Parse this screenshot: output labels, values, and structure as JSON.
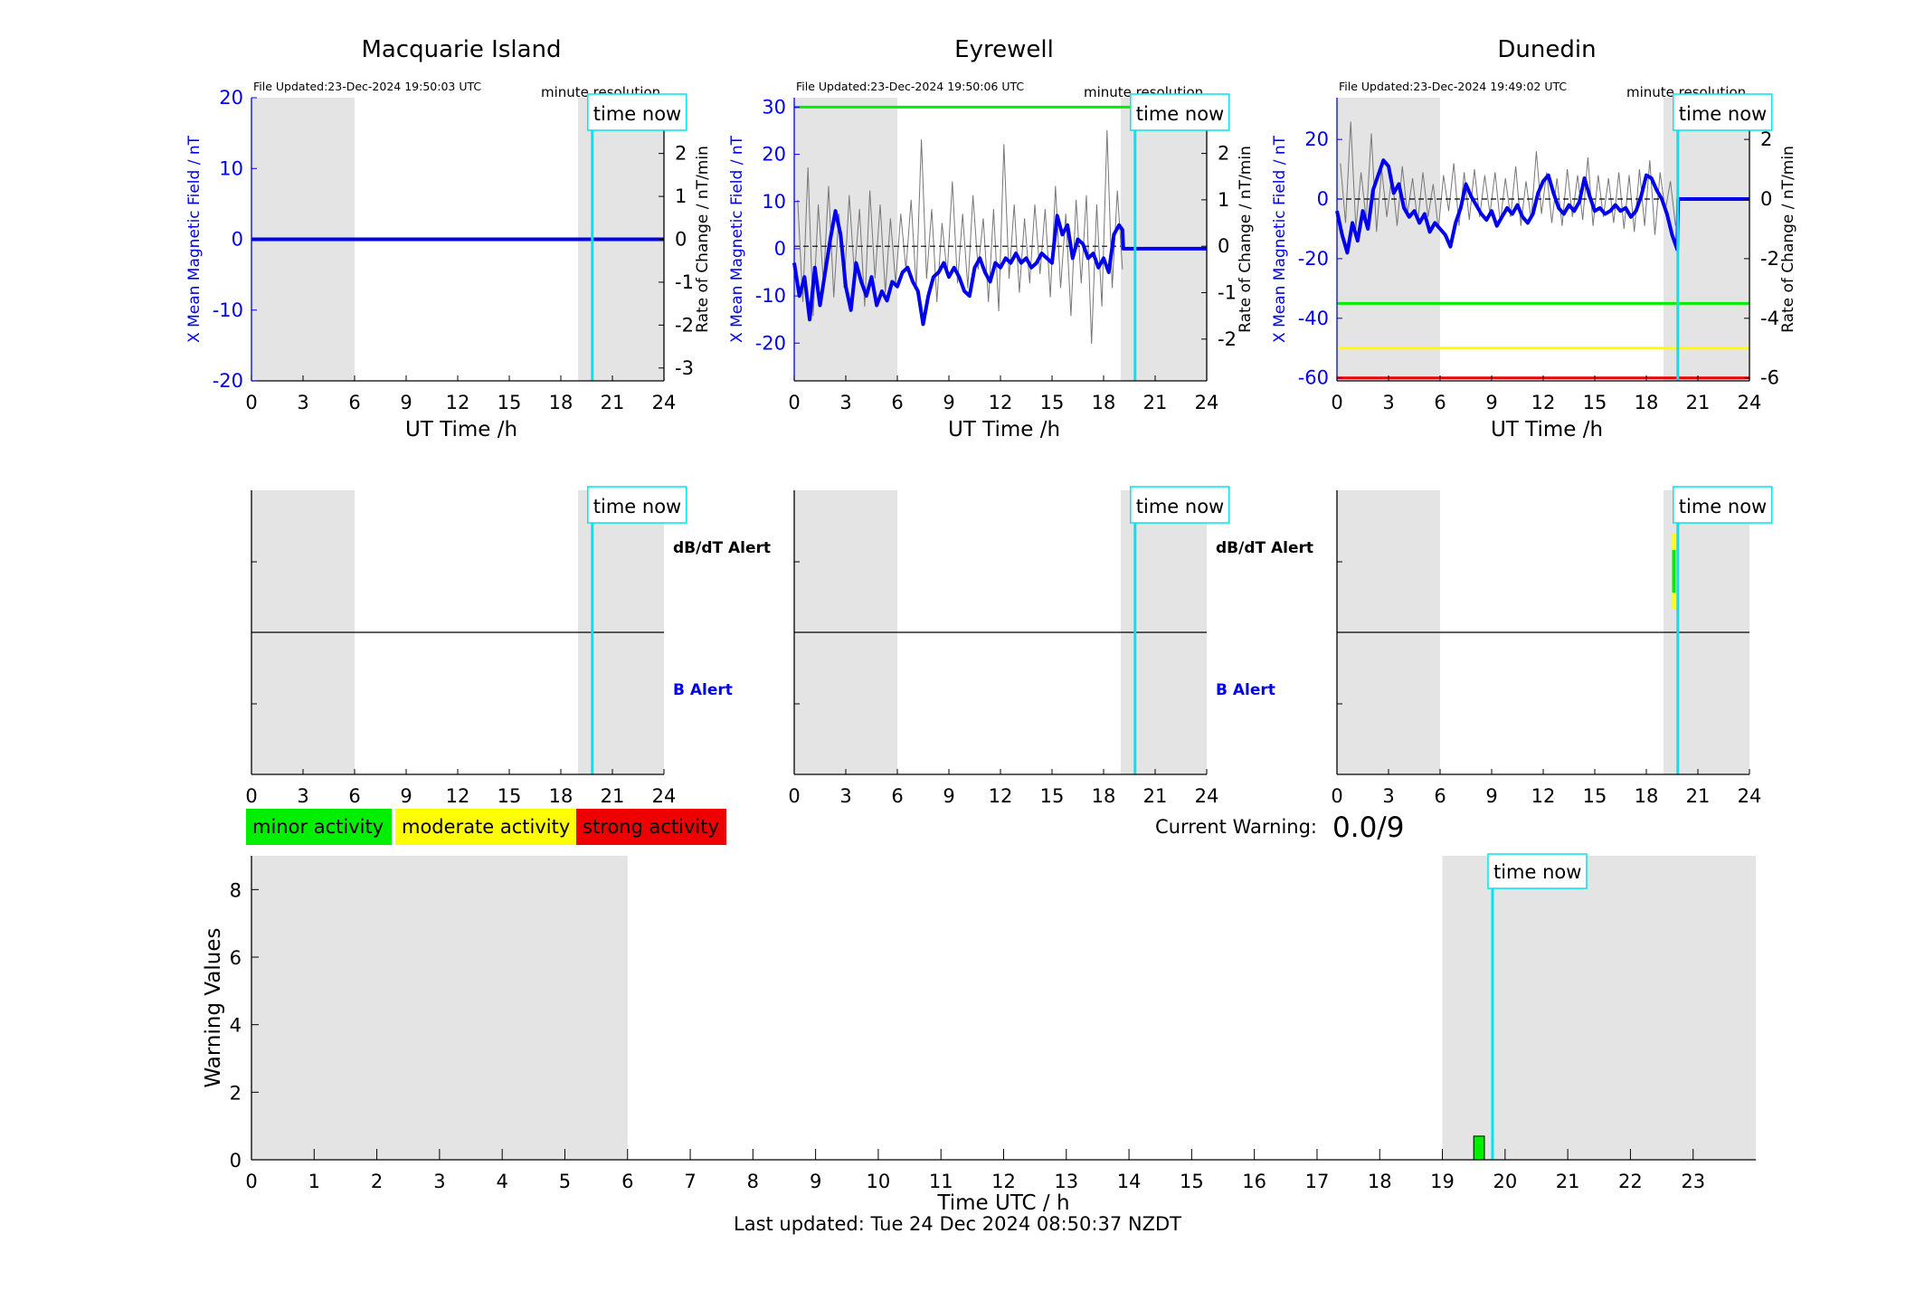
{
  "colors": {
    "shade": "#e4e4e4",
    "mean_line": "#0000ee",
    "axis_blue": "#0000ee",
    "time_now": "#00e5ee",
    "minor": "#00ee00",
    "moderate": "#ffff00",
    "strong": "#ee0000"
  },
  "chart_data": [
    {
      "type": "line",
      "title": "Macquarie Island",
      "file_updated": "File Updated:23-Dec-2024 19:50:03 UTC",
      "resolution_label": "minute resolution",
      "time_now_label": "time now",
      "time_now_h": 19.83,
      "shade_bands_h": [
        [
          0,
          6
        ],
        [
          19.0,
          24
        ]
      ],
      "xlabel": "UT Time /h",
      "xticks": [
        0,
        3,
        6,
        9,
        12,
        15,
        18,
        21,
        24
      ],
      "xlim": [
        0,
        24
      ],
      "ylabel_left": "X Mean Magnetic Field / nT",
      "ylim_left": [
        -20,
        20
      ],
      "yticks_left": [
        -20,
        -10,
        0,
        10,
        20
      ],
      "ylabel_right": "Rate of Change / nT/min",
      "ylim_right": [
        -3.3,
        3.3
      ],
      "yticks_right": [
        -3,
        -2,
        -1,
        0,
        1,
        2,
        3
      ],
      "threshold_lines": [],
      "mean_field": {
        "x": [
          0,
          24
        ],
        "y": [
          0,
          0
        ]
      },
      "rate_series": {
        "x": [],
        "y": []
      }
    },
    {
      "type": "line",
      "title": "Eyrewell",
      "file_updated": "File Updated:23-Dec-2024 19:50:06 UTC",
      "resolution_label": "minute resolution",
      "time_now_label": "time now",
      "time_now_h": 19.83,
      "shade_bands_h": [
        [
          0,
          6
        ],
        [
          19.0,
          24
        ]
      ],
      "xlabel": "UT Time /h",
      "xticks": [
        0,
        3,
        6,
        9,
        12,
        15,
        18,
        21,
        24
      ],
      "xlim": [
        0,
        24
      ],
      "ylabel_left": "X Mean Magnetic Field / nT",
      "ylim_left": [
        -28,
        32
      ],
      "yticks_left": [
        -20,
        -10,
        0,
        10,
        20,
        30
      ],
      "ylabel_right": "Rate of Change / nT/min",
      "ylim_right": [
        -2.9,
        3.2
      ],
      "yticks_right": [
        -2,
        -1,
        0,
        1,
        2,
        3
      ],
      "threshold_lines": [
        {
          "value": 30,
          "color": "#00ee00"
        }
      ],
      "mean_field": {
        "x": [
          0,
          0.3,
          0.6,
          0.9,
          1.2,
          1.5,
          1.8,
          2.1,
          2.4,
          2.7,
          3.0,
          3.3,
          3.6,
          3.9,
          4.2,
          4.5,
          4.8,
          5.1,
          5.4,
          5.7,
          6.0,
          6.3,
          6.6,
          6.9,
          7.2,
          7.5,
          7.8,
          8.1,
          8.4,
          8.7,
          9.0,
          9.3,
          9.6,
          9.9,
          10.2,
          10.5,
          10.8,
          11.1,
          11.4,
          11.7,
          12.0,
          12.3,
          12.6,
          12.9,
          13.2,
          13.5,
          13.8,
          14.1,
          14.4,
          14.7,
          15.0,
          15.3,
          15.6,
          15.9,
          16.2,
          16.5,
          16.8,
          17.1,
          17.4,
          17.7,
          18.0,
          18.3,
          18.6,
          18.9,
          19.1,
          19.15,
          24
        ],
        "y": [
          -3,
          -10,
          -6,
          -15,
          -4,
          -12,
          -5,
          2,
          8,
          3,
          -8,
          -13,
          -3,
          -7,
          -10,
          -6,
          -12,
          -9,
          -11,
          -7,
          -8,
          -5,
          -4,
          -7,
          -9,
          -16,
          -10,
          -6,
          -5,
          -3,
          -6,
          -4,
          -6,
          -9,
          -10,
          -4,
          -2,
          -5,
          -7,
          -3,
          -4,
          -2,
          -3,
          -1,
          -3,
          -2,
          -4,
          -3,
          -1,
          -2,
          -3,
          7,
          3,
          5,
          -2,
          2,
          1,
          -2,
          -1,
          -4,
          -2,
          -5,
          3,
          5,
          4,
          0,
          0
        ]
      },
      "rate_series": {
        "x": [
          0.2,
          0.5,
          0.8,
          1.1,
          1.4,
          1.7,
          2.0,
          2.3,
          2.6,
          2.9,
          3.2,
          3.5,
          3.8,
          4.1,
          4.4,
          4.7,
          5.0,
          5.3,
          5.6,
          5.9,
          6.2,
          6.5,
          6.8,
          7.1,
          7.4,
          7.7,
          8.0,
          8.3,
          8.6,
          8.9,
          9.2,
          9.5,
          9.8,
          10.1,
          10.4,
          10.7,
          11.0,
          11.3,
          11.6,
          11.9,
          12.2,
          12.5,
          12.8,
          13.1,
          13.4,
          13.7,
          14.0,
          14.3,
          14.6,
          14.9,
          15.2,
          15.5,
          15.8,
          16.1,
          16.4,
          16.7,
          17.0,
          17.3,
          17.6,
          17.9,
          18.2,
          18.5,
          18.8,
          19.1
        ],
        "y": [
          1.0,
          -1.2,
          1.7,
          -1.5,
          0.9,
          -0.8,
          1.3,
          -1.1,
          0.7,
          -0.9,
          1.1,
          -0.6,
          0.8,
          -1.3,
          1.2,
          -0.7,
          0.9,
          -1.0,
          0.6,
          -0.8,
          0.7,
          -0.5,
          1.0,
          -0.9,
          2.3,
          -0.7,
          0.8,
          -1.2,
          0.5,
          -0.6,
          1.4,
          -0.8,
          0.7,
          -0.9,
          1.1,
          -0.5,
          0.6,
          -1.2,
          0.8,
          -1.4,
          2.2,
          -0.7,
          0.9,
          -1.0,
          0.6,
          -0.8,
          0.9,
          -0.6,
          0.8,
          -1.1,
          1.3,
          -0.9,
          0.7,
          -1.5,
          1.0,
          -0.8,
          1.1,
          -2.1,
          0.9,
          -1.3,
          2.5,
          -0.9,
          1.2,
          -0.5
        ]
      }
    },
    {
      "type": "line",
      "title": "Dunedin",
      "file_updated": "File Updated:23-Dec-2024 19:49:02 UTC",
      "resolution_label": "minute resolution",
      "time_now_label": "time now",
      "time_now_h": 19.83,
      "shade_bands_h": [
        [
          0,
          6
        ],
        [
          19.0,
          24
        ]
      ],
      "xlabel": "UT Time /h",
      "xticks": [
        0,
        3,
        6,
        9,
        12,
        15,
        18,
        21,
        24
      ],
      "xlim": [
        0,
        24
      ],
      "ylabel_left": "X Mean Magnetic Field / nT",
      "ylim_left": [
        -61,
        34
      ],
      "yticks_left": [
        -60,
        -40,
        -20,
        0,
        20
      ],
      "ylabel_right": "Rate of Change / nT/min",
      "ylim_right": [
        -6.1,
        3.4
      ],
      "yticks_right": [
        -6,
        -4,
        -2,
        0,
        2
      ],
      "threshold_lines": [
        {
          "value": -35,
          "color": "#00ee00"
        },
        {
          "value": -50,
          "color": "#ffff00"
        },
        {
          "value": -60,
          "color": "#ee0000"
        }
      ],
      "mean_field": {
        "x": [
          0,
          0.3,
          0.6,
          0.9,
          1.2,
          1.5,
          1.8,
          2.1,
          2.4,
          2.7,
          3.0,
          3.3,
          3.6,
          3.9,
          4.2,
          4.5,
          4.8,
          5.1,
          5.4,
          5.7,
          6.0,
          6.3,
          6.6,
          6.9,
          7.2,
          7.5,
          7.8,
          8.1,
          8.4,
          8.7,
          9.0,
          9.3,
          9.6,
          9.9,
          10.2,
          10.5,
          10.8,
          11.1,
          11.4,
          11.7,
          12.0,
          12.3,
          12.6,
          12.9,
          13.2,
          13.5,
          13.8,
          14.1,
          14.4,
          14.7,
          15.0,
          15.3,
          15.6,
          15.9,
          16.2,
          16.5,
          16.8,
          17.1,
          17.4,
          17.7,
          18.0,
          18.3,
          18.6,
          18.9,
          19.2,
          19.5,
          19.8,
          19.85,
          24
        ],
        "y": [
          -4,
          -12,
          -18,
          -8,
          -14,
          -4,
          -10,
          3,
          8,
          13,
          11,
          2,
          5,
          -3,
          -6,
          -4,
          -8,
          -5,
          -11,
          -8,
          -10,
          -12,
          -16,
          -8,
          -3,
          5,
          1,
          -2,
          -5,
          -7,
          -4,
          -9,
          -6,
          -3,
          -5,
          -2,
          -6,
          -8,
          -5,
          2,
          6,
          8,
          2,
          -3,
          -5,
          -2,
          -4,
          -1,
          7,
          1,
          -4,
          -3,
          -5,
          -4,
          -2,
          -4,
          -3,
          -6,
          -4,
          1,
          8,
          7,
          3,
          0,
          -5,
          -12,
          -17,
          0,
          0
        ]
      },
      "rate_series": {
        "x": [
          0.2,
          0.5,
          0.8,
          1.1,
          1.4,
          1.7,
          2.0,
          2.3,
          2.6,
          2.9,
          3.2,
          3.5,
          3.8,
          4.1,
          4.4,
          4.7,
          5.0,
          5.3,
          5.6,
          5.9,
          6.2,
          6.5,
          6.8,
          7.1,
          7.4,
          7.7,
          8.0,
          8.3,
          8.6,
          8.9,
          9.2,
          9.5,
          9.8,
          10.1,
          10.4,
          10.7,
          11.0,
          11.3,
          11.6,
          11.9,
          12.2,
          12.5,
          12.8,
          13.1,
          13.4,
          13.7,
          14.0,
          14.3,
          14.6,
          14.9,
          15.2,
          15.5,
          15.8,
          16.1,
          16.4,
          16.7,
          17.0,
          17.3,
          17.6,
          17.9,
          18.2,
          18.5,
          18.8,
          19.1,
          19.4,
          19.7
        ],
        "y": [
          1.2,
          -0.8,
          2.6,
          -1.0,
          0.9,
          -0.7,
          2.2,
          -1.1,
          1.0,
          -0.6,
          0.8,
          -0.9,
          1.1,
          -0.5,
          0.7,
          -0.8,
          0.9,
          -0.6,
          0.5,
          -1.0,
          0.8,
          -0.4,
          1.2,
          -0.9,
          0.9,
          -0.7,
          1.0,
          -0.6,
          0.8,
          -0.5,
          0.9,
          -0.8,
          0.7,
          -0.6,
          1.1,
          -0.9,
          0.6,
          -0.7,
          1.6,
          -0.5,
          0.9,
          -0.8,
          0.7,
          -0.9,
          1.0,
          -0.6,
          0.8,
          -0.7,
          1.4,
          -0.9,
          0.8,
          -0.6,
          0.7,
          -0.8,
          0.9,
          -1.0,
          0.8,
          -1.1,
          1.0,
          -0.9,
          1.3,
          -1.2,
          0.9,
          -0.4,
          0.6,
          -0.9
        ]
      }
    },
    {
      "type": "timeline",
      "station": "Macquarie Island",
      "label_top": "dB/dT Alert",
      "label_bottom": "B Alert",
      "time_now_label": "time now",
      "time_now_h": 19.83,
      "shade_bands_h": [
        [
          0,
          6
        ],
        [
          19.0,
          24
        ]
      ],
      "xticks": [
        0,
        3,
        6,
        9,
        12,
        15,
        18,
        21,
        24
      ],
      "xlim": [
        0,
        24
      ],
      "alert_marks": []
    },
    {
      "type": "timeline",
      "station": "Eyrewell",
      "label_top": "dB/dT Alert",
      "label_bottom": "B Alert",
      "time_now_label": "time now",
      "time_now_h": 19.83,
      "shade_bands_h": [
        [
          0,
          6
        ],
        [
          19.0,
          24
        ]
      ],
      "xticks": [
        0,
        3,
        6,
        9,
        12,
        15,
        18,
        21,
        24
      ],
      "xlim": [
        0,
        24
      ],
      "alert_marks": []
    },
    {
      "type": "timeline",
      "station": "Dunedin",
      "label_top": "",
      "label_bottom": "",
      "time_now_label": "time now",
      "time_now_h": 19.83,
      "shade_bands_h": [
        [
          0,
          6
        ],
        [
          19.0,
          24
        ]
      ],
      "xticks": [
        0,
        3,
        6,
        9,
        12,
        15,
        18,
        21,
        24
      ],
      "xlim": [
        0,
        24
      ],
      "alert_marks": [
        {
          "t0": 19.5,
          "t1": 19.65,
          "level": "moderate",
          "band": "dBdt",
          "y0": 0.58,
          "y1": 0.85
        },
        {
          "t0": 19.5,
          "t1": 19.65,
          "level": "minor",
          "band": "dBdt",
          "y0": 0.64,
          "y1": 0.79
        }
      ]
    },
    {
      "type": "bar",
      "ylabel": "Warning Values",
      "xlabel": "Time UTC / h",
      "xlim": [
        0,
        24
      ],
      "ylim": [
        0,
        9
      ],
      "xticks": [
        0,
        1,
        2,
        3,
        4,
        5,
        6,
        7,
        8,
        9,
        10,
        11,
        12,
        13,
        14,
        15,
        16,
        17,
        18,
        19,
        20,
        21,
        22,
        23
      ],
      "yticks": [
        0,
        2,
        4,
        6,
        8
      ],
      "time_now_label": "time now",
      "time_now_h": 19.8,
      "shade_bands_h": [
        [
          0,
          6
        ],
        [
          19.0,
          24
        ]
      ],
      "bars": [
        {
          "start": 19.5,
          "end": 19.67,
          "value": 0.7,
          "level": "minor"
        }
      ]
    }
  ],
  "legend": [
    {
      "label": "minor activity",
      "level": "minor"
    },
    {
      "label": "moderate activity",
      "level": "moderate"
    },
    {
      "label": "strong activity",
      "level": "strong"
    }
  ],
  "current_warning": {
    "label": "Current Warning:",
    "value": "0.0/9"
  },
  "last_updated": "Last updated: Tue 24 Dec 2024 08:50:37 NZDT"
}
